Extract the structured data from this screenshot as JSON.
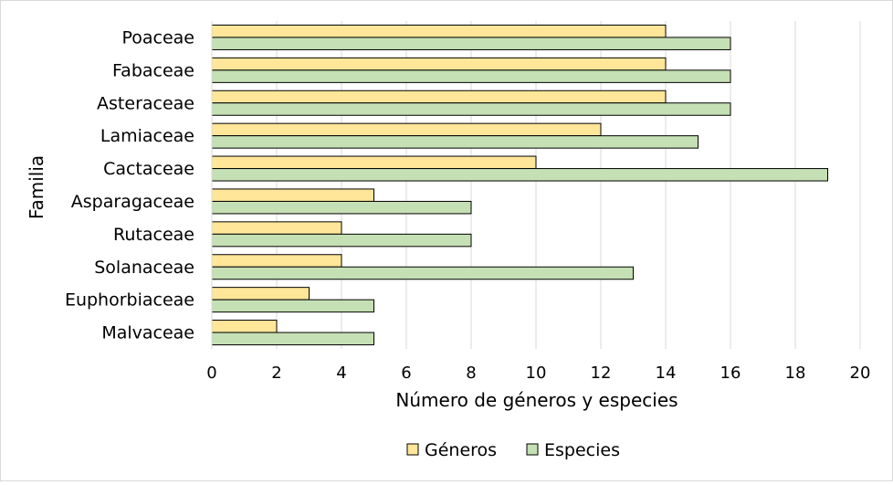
{
  "chart_data": {
    "type": "bar",
    "orientation": "horizontal",
    "categories": [
      "Poaceae",
      "Fabaceae",
      "Asteraceae",
      "Lamiaceae",
      "Cactaceae",
      "Asparagaceae",
      "Rutaceae",
      "Solanaceae",
      "Euphorbiaceae",
      "Malvaceae"
    ],
    "series": [
      {
        "name": "Géneros",
        "values": [
          14,
          14,
          14,
          12,
          10,
          5,
          4,
          4,
          3,
          2
        ],
        "color": "#ffe699"
      },
      {
        "name": "Especies",
        "values": [
          16,
          16,
          16,
          15,
          19,
          8,
          8,
          13,
          5,
          5
        ],
        "color": "#c5e0b4"
      }
    ],
    "xlabel": "Número de géneros y especies",
    "ylabel": "Familia",
    "xlim": [
      0,
      20
    ],
    "xticks": [
      "0",
      "2",
      "4",
      "6",
      "8",
      "10",
      "12",
      "14",
      "16",
      "18",
      "20"
    ],
    "grid": true,
    "legend": "bottom"
  }
}
